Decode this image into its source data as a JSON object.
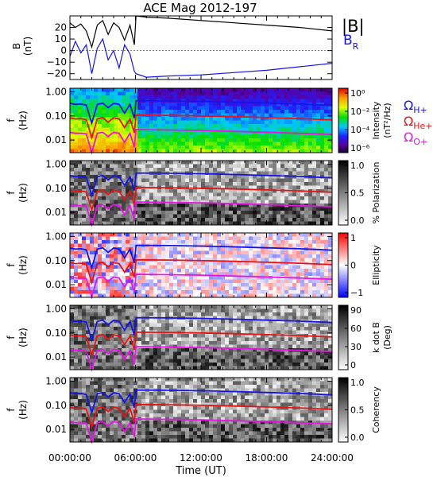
{
  "title": "ACE Mag 2012-197",
  "xlabel": "Time (UT)",
  "x_tick_labels": [
    "00:00:00",
    "06:00:00",
    "12:00:00",
    "18:00:00",
    "24:00:00"
  ],
  "legend_b": {
    "total": "|B|",
    "radial": "B",
    "radial_sub": "R"
  },
  "legend_cyclotron": [
    {
      "omega": "Ω",
      "sub": "H+",
      "color": "#1414e6"
    },
    {
      "omega": "Ω",
      "sub": "He+",
      "color": "#e61414"
    },
    {
      "omega": "Ω",
      "sub": "O+",
      "color": "#e614e6"
    }
  ],
  "panel1_ylabel": [
    "B",
    "(nT)"
  ],
  "freq_ylabel": [
    "f",
    "(Hz)"
  ],
  "panel1_tick_labels": [
    "20",
    "10",
    "0",
    "−10",
    "−20"
  ],
  "freq_tick_labels": [
    "1.00",
    "0.10",
    "0.01"
  ],
  "colorbars": [
    {
      "label": [
        "Intensity",
        "(nT²/Hz)"
      ],
      "ticks": [
        "10⁰",
        "10⁻²",
        "10⁻⁴",
        "10⁻⁶"
      ],
      "colormap": "rainbow"
    },
    {
      "label": [
        "% Polarization"
      ],
      "ticks": [
        "1.0",
        "0.5",
        "0.0"
      ],
      "colormap": "gray"
    },
    {
      "label": [
        "Ellipticity"
      ],
      "ticks": [
        "1",
        "0",
        "−1"
      ],
      "colormap": "bwr"
    },
    {
      "label": [
        "k dot B",
        "(Deg)"
      ],
      "ticks": [
        "90",
        "60",
        "30",
        "0"
      ],
      "colormap": "gray"
    },
    {
      "label": [
        "Coherency"
      ],
      "ticks": [
        "1.0",
        "0.5",
        "0.0"
      ],
      "colormap": "gray"
    }
  ],
  "chart_data": {
    "type": "line",
    "title": "ACE Mag 2012-197",
    "xlabel": "Time (UT)",
    "xlim": [
      0,
      24
    ],
    "panels": [
      {
        "name": "magnetic field",
        "ylabel": "B (nT)",
        "ylim": [
          -25,
          30
        ],
        "series": [
          {
            "name": "|B|",
            "color": "#000000",
            "x": [
              0,
              0.5,
              1,
              1.5,
              2,
              2.5,
              3,
              3.5,
              4,
              4.5,
              5,
              5.5,
              5.9,
              6.05,
              7,
              9,
              12,
              15,
              18,
              21,
              24
            ],
            "y": [
              24,
              20,
              23,
              17,
              3,
              22,
              26,
              14,
              24,
              20,
              9,
              22,
              5,
              30,
              29,
              28,
              26,
              24,
              22,
              20,
              17
            ]
          },
          {
            "name": "B_R",
            "color": "#1414e6",
            "x": [
              0,
              0.5,
              1,
              1.5,
              2,
              2.5,
              3,
              3.5,
              4,
              4.5,
              5,
              5.5,
              5.9,
              6.05,
              7,
              9,
              12,
              15,
              18,
              21,
              24
            ],
            "y": [
              -5,
              8,
              -2,
              5,
              -20,
              2,
              10,
              -8,
              0,
              -15,
              5,
              -3,
              -18,
              -20,
              -23,
              -22,
              -21,
              -19,
              -17,
              -14,
              -11
            ]
          }
        ]
      },
      {
        "name": "spectrogram",
        "ylabel": "f (Hz)",
        "yscale": "log",
        "ylim": [
          0.003,
          1.4
        ],
        "series": [
          {
            "name": "Ω_H+",
            "color": "#1414e6",
            "x": [
              0,
              0.5,
              1,
              1.5,
              2,
              2.5,
              3,
              3.5,
              4,
              4.5,
              5,
              5.5,
              5.9,
              6.05,
              9,
              12,
              15,
              18,
              21,
              24
            ],
            "y": [
              0.33,
              0.3,
              0.31,
              0.28,
              0.05,
              0.3,
              0.34,
              0.22,
              0.33,
              0.3,
              0.13,
              0.3,
              0.08,
              0.43,
              0.42,
              0.4,
              0.37,
              0.34,
              0.31,
              0.27
            ]
          },
          {
            "name": "Ω_He+",
            "color": "#e61414",
            "x": [
              0,
              0.5,
              1,
              1.5,
              2,
              2.5,
              3,
              3.5,
              4,
              4.5,
              5,
              5.5,
              5.9,
              6.05,
              9,
              12,
              15,
              18,
              21,
              24
            ],
            "y": [
              0.083,
              0.075,
              0.078,
              0.07,
              0.0125,
              0.075,
              0.085,
              0.055,
              0.083,
              0.075,
              0.033,
              0.075,
              0.02,
              0.108,
              0.105,
              0.1,
              0.093,
              0.085,
              0.078,
              0.068
            ]
          },
          {
            "name": "Ω_O+",
            "color": "#e614e6",
            "x": [
              0,
              0.5,
              1,
              1.5,
              2,
              2.5,
              3,
              3.5,
              4,
              4.5,
              5,
              5.5,
              5.9,
              6.05,
              9,
              12,
              15,
              18,
              21,
              24
            ],
            "y": [
              0.021,
              0.019,
              0.019,
              0.018,
              0.0031,
              0.019,
              0.021,
              0.014,
              0.021,
              0.019,
              0.008,
              0.019,
              0.005,
              0.027,
              0.026,
              0.025,
              0.023,
              0.021,
              0.019,
              0.017
            ]
          }
        ]
      }
    ]
  }
}
